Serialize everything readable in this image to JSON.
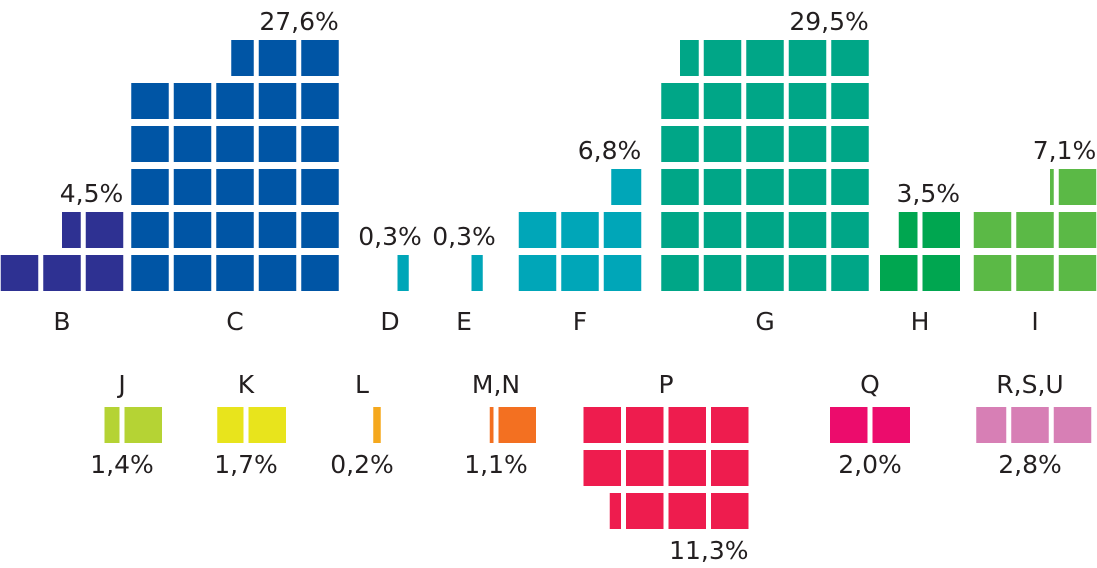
{
  "chart_data": {
    "type": "waffle",
    "categories": [
      "B",
      "C",
      "D",
      "E",
      "F",
      "G",
      "H",
      "I",
      "J",
      "K",
      "L",
      "M,N",
      "P",
      "Q",
      "R,S,U"
    ],
    "values": [
      4.5,
      27.6,
      0.3,
      0.3,
      6.8,
      29.5,
      3.5,
      7.1,
      1.4,
      1.7,
      0.2,
      1.1,
      11.3,
      2.0,
      2.8
    ],
    "value_labels": [
      "4,5%",
      "27,6%",
      "0,3%",
      "0,3%",
      "6,8%",
      "29,5%",
      "3,5%",
      "7,1%",
      "1,4%",
      "1,7%",
      "0,2%",
      "1,1%",
      "11,3%",
      "2,0%",
      "2,8%"
    ],
    "colors": [
      "#2e3192",
      "#0055a5",
      "#00a6b8",
      "#00a6b8",
      "#00a6b8",
      "#00a687",
      "#00a650",
      "#5bb946",
      "#b5d334",
      "#e8e41c",
      "#f5a81d",
      "#f37021",
      "#ee1c4e",
      "#ec0c6c",
      "#d77fb5"
    ]
  }
}
